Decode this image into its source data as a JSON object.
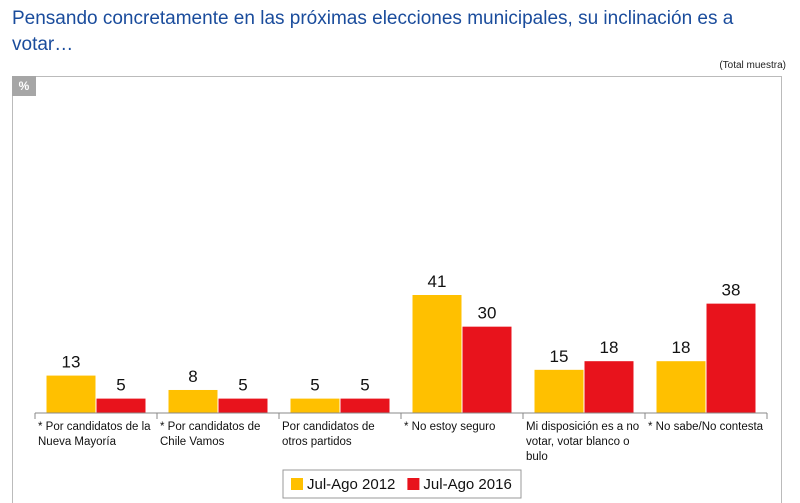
{
  "chart_data": {
    "type": "bar",
    "title": "Pensando concretamente en las próximas elecciones municipales, su inclinación es a votar…",
    "subtitle": "(Total muestra)",
    "unit_label": "%",
    "categories": [
      "* Por candidatos de la Nueva Mayoría",
      "* Por candidatos de Chile Vamos",
      "Por candidatos de otros partidos",
      "* No estoy seguro",
      "Mi disposición es a no votar, votar blanco o bulo",
      "* No sabe/No contesta"
    ],
    "series": [
      {
        "name": "Jul-Ago 2012",
        "color": "#ffc000",
        "values": [
          13,
          8,
          5,
          41,
          15,
          18
        ]
      },
      {
        "name": "Jul-Ago 2016",
        "color": "#e8131c",
        "values": [
          5,
          5,
          5,
          30,
          18,
          38
        ]
      }
    ],
    "legend": "bottom"
  }
}
